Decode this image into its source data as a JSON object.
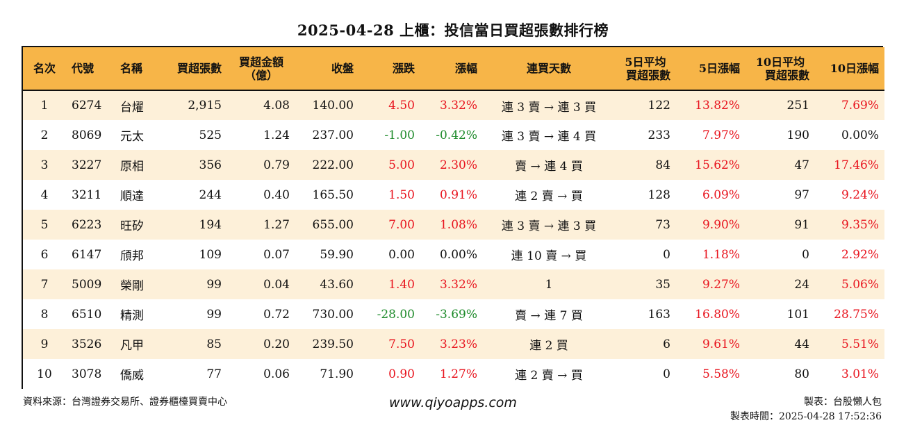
{
  "title": "2025-04-28 上櫃：投信當日買超張數排行榜",
  "headers": {
    "rank": "名次",
    "code": "代號",
    "name": "名稱",
    "net_buy_lots": "買超張數",
    "net_buy_amount_1": "買超金額",
    "net_buy_amount_2": "（億）",
    "close": "收盤",
    "change": "漲跌",
    "change_pct": "漲幅",
    "streak": "連買天數",
    "avg5_1": "5日平均",
    "avg5_2": "買超張數",
    "chg5": "5日漲幅",
    "avg10_1": "10日平均",
    "avg10_2": "買超張數",
    "chg10": "10日漲幅"
  },
  "rows": [
    {
      "rank": "1",
      "code": "6274",
      "name": "台燿",
      "lots": "2,915",
      "amount": "4.08",
      "close": "140.00",
      "change": "4.50",
      "change_pct": "3.32%",
      "streak": "連 3 賣 → 連 3 買",
      "avg5": "122",
      "chg5": "13.82%",
      "avg10": "251",
      "chg10": "7.69%"
    },
    {
      "rank": "2",
      "code": "8069",
      "name": "元太",
      "lots": "525",
      "amount": "1.24",
      "close": "237.00",
      "change": "-1.00",
      "change_pct": "-0.42%",
      "streak": "連 3 賣 → 連 4 買",
      "avg5": "233",
      "chg5": "7.97%",
      "avg10": "190",
      "chg10": "0.00%"
    },
    {
      "rank": "3",
      "code": "3227",
      "name": "原相",
      "lots": "356",
      "amount": "0.79",
      "close": "222.00",
      "change": "5.00",
      "change_pct": "2.30%",
      "streak": "賣 → 連 4 買",
      "avg5": "84",
      "chg5": "15.62%",
      "avg10": "47",
      "chg10": "17.46%"
    },
    {
      "rank": "4",
      "code": "3211",
      "name": "順達",
      "lots": "244",
      "amount": "0.40",
      "close": "165.50",
      "change": "1.50",
      "change_pct": "0.91%",
      "streak": "連 2 賣 → 買",
      "avg5": "128",
      "chg5": "6.09%",
      "avg10": "97",
      "chg10": "9.24%"
    },
    {
      "rank": "5",
      "code": "6223",
      "name": "旺矽",
      "lots": "194",
      "amount": "1.27",
      "close": "655.00",
      "change": "7.00",
      "change_pct": "1.08%",
      "streak": "連 3 賣 → 連 3 買",
      "avg5": "73",
      "chg5": "9.90%",
      "avg10": "91",
      "chg10": "9.35%"
    },
    {
      "rank": "6",
      "code": "6147",
      "name": "頎邦",
      "lots": "109",
      "amount": "0.07",
      "close": "59.90",
      "change": "0.00",
      "change_pct": "0.00%",
      "streak": "連 10 賣 → 買",
      "avg5": "0",
      "chg5": "1.18%",
      "avg10": "0",
      "chg10": "2.92%"
    },
    {
      "rank": "7",
      "code": "5009",
      "name": "榮剛",
      "lots": "99",
      "amount": "0.04",
      "close": "43.60",
      "change": "1.40",
      "change_pct": "3.32%",
      "streak": "1",
      "avg5": "35",
      "chg5": "9.27%",
      "avg10": "24",
      "chg10": "5.06%"
    },
    {
      "rank": "8",
      "code": "6510",
      "name": "精測",
      "lots": "99",
      "amount": "0.72",
      "close": "730.00",
      "change": "-28.00",
      "change_pct": "-3.69%",
      "streak": "賣 → 連 7 買",
      "avg5": "163",
      "chg5": "16.80%",
      "avg10": "101",
      "chg10": "28.75%"
    },
    {
      "rank": "9",
      "code": "3526",
      "name": "凡甲",
      "lots": "85",
      "amount": "0.20",
      "close": "239.50",
      "change": "7.50",
      "change_pct": "3.23%",
      "streak": "連 2 買",
      "avg5": "6",
      "chg5": "9.61%",
      "avg10": "44",
      "chg10": "5.51%"
    },
    {
      "rank": "10",
      "code": "3078",
      "name": "僑威",
      "lots": "77",
      "amount": "0.06",
      "close": "71.90",
      "change": "0.90",
      "change_pct": "1.27%",
      "streak": "連 2 賣 → 買",
      "avg5": "0",
      "chg5": "5.58%",
      "avg10": "80",
      "chg10": "3.01%"
    }
  ],
  "footer": {
    "source": "資料來源：台灣證券交易所、證券櫃檯買賣中心",
    "website": "www.qiyoapps.com",
    "maker": "製表：台股懶人包",
    "made_time": "製表時間：2025-04-28 17:52:36"
  },
  "colors": {
    "header_bg": "#f7b548",
    "stripe_bg": "#fdf0d9",
    "up": "#e8131d",
    "down": "#1d8a2a"
  }
}
